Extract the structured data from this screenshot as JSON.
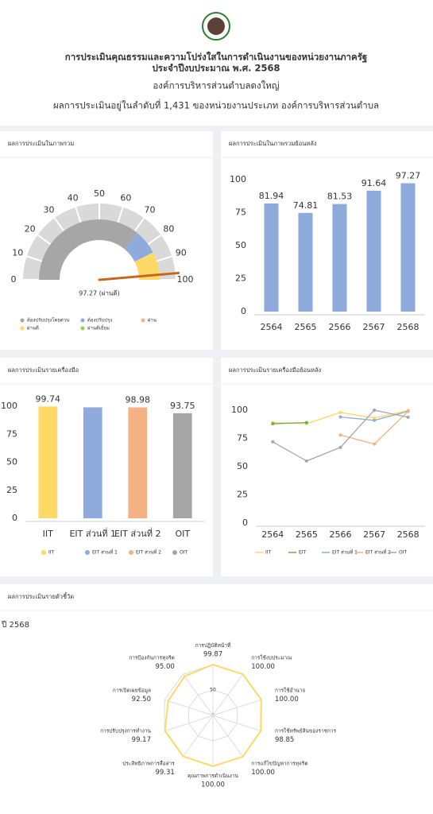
{
  "header": {
    "title": "การประเมินคุณธรรมและความโปร่งใสในการดำเนินงานของหน่วยงานภาครัฐ",
    "title_line2": "ประจำปีงบประมาณ พ.ศ. 2568",
    "organization": "องค์การบริหารส่วนตำบลดงใหญ่",
    "ranking": "ผลการประเมินอยู่ในลำดับที่ 1,431 ของหน่วยงานประเภท องค์การบริหารส่วนตำบล"
  },
  "chart_data": [
    {
      "type": "gauge",
      "title": "ผลการประเมินในภาพรวม",
      "value": 97.27,
      "value_label": "97.27 (ผ่านดี)",
      "ylim": [
        0,
        100
      ],
      "yticks": [
        0,
        10,
        20,
        30,
        40,
        50,
        60,
        70,
        80,
        90,
        100
      ],
      "bands": [
        {
          "from": 0,
          "to": 72,
          "color": "#a6a6a6"
        },
        {
          "from": 72,
          "to": 85,
          "color": "#8faadc"
        },
        {
          "from": 85,
          "to": 100,
          "color": "#ffd966"
        }
      ],
      "needle_color": "#c8661e",
      "legend": [
        {
          "name": "ต้องปรับปรุงโดยด่วน",
          "color": "#a6a6a6"
        },
        {
          "name": "ต้องปรับปรุง",
          "color": "#8faadc"
        },
        {
          "name": "ผ่าน",
          "color": "#f4b183"
        },
        {
          "name": "ผ่านดี",
          "color": "#ffd966"
        },
        {
          "name": "ผ่านดีเยี่ยม",
          "color": "#92d050"
        }
      ]
    },
    {
      "type": "bar",
      "title": "ผลการประเมินในภาพรวมย้อนหลัง",
      "categories": [
        "2564",
        "2565",
        "2566",
        "2567",
        "2568"
      ],
      "values": [
        81.94,
        74.81,
        81.53,
        91.64,
        97.27
      ],
      "color": "#8eaadb",
      "ylim": [
        0,
        100
      ],
      "yticks": [
        0,
        25,
        50,
        75,
        100
      ],
      "grid": false
    },
    {
      "type": "bar",
      "title": "ผลการประเมินรายเครื่องมือ",
      "categories": [
        "IIT",
        "EIT ส่วนที่ 1",
        "EIT ส่วนที่ 2",
        "OIT"
      ],
      "values": [
        99.74,
        99,
        98.98,
        93.75
      ],
      "value_labels": [
        "99.74",
        null,
        "98.98",
        "93.75"
      ],
      "colors": [
        "#ffd966",
        "#8faadc",
        "#f4b183",
        "#a5a5a5"
      ],
      "ylim": [
        0,
        100
      ],
      "yticks": [
        0,
        25,
        50,
        75,
        100
      ],
      "grid": false,
      "legend": true
    },
    {
      "type": "line",
      "title": "ผลการประเมินรายเครื่องมือย้อนหลัง",
      "categories": [
        "2564",
        "2565",
        "2566",
        "2567",
        "2568"
      ],
      "ylim": [
        0,
        100
      ],
      "yticks": [
        0,
        25,
        50,
        75,
        100
      ],
      "grid": false,
      "series": [
        {
          "name": "IIT",
          "color": "#ffd966",
          "values": [
            89,
            88,
            98,
            93,
            99.74
          ]
        },
        {
          "name": "EIT",
          "color": "#70ad47",
          "values": [
            88,
            89,
            null,
            null,
            null
          ]
        },
        {
          "name": "EIT ส่วนที่ 1",
          "color": "#8faadc",
          "values": [
            null,
            null,
            94,
            91,
            99
          ]
        },
        {
          "name": "EIT ส่วนที่ 2",
          "color": "#f4b183",
          "values": [
            null,
            null,
            78,
            70,
            98.98
          ]
        },
        {
          "name": "OIT",
          "color": "#a5a5a5",
          "values": [
            72,
            55,
            67,
            100,
            93.75
          ]
        }
      ]
    },
    {
      "type": "radar",
      "title": "ผลการประเมินรายตัวชี้วัด",
      "subtitle": "ปี 2568",
      "color": "#ffd966",
      "rlim": [
        0,
        100
      ],
      "rticks": [
        0,
        50
      ],
      "categories": [
        "การปฏิบัติหน้าที่",
        "การใช้งบประมาณ",
        "การใช้อำนาจ",
        "การใช้ทรัพย์สินของราชการ",
        "การแก้ไขปัญหาการทุจริต",
        "คุณภาพการดำเนินงาน",
        "ประสิทธิภาพการสื่อสาร",
        "การปรับปรุงการทำงาน",
        "การเปิดเผยข้อมูล",
        "การป้องกันการทุจริต"
      ],
      "values": [
        99.87,
        100,
        100,
        98.85,
        100,
        100,
        99.31,
        99.17,
        92.5,
        95
      ],
      "value_labels": [
        "99.87",
        "100.00",
        "100.00",
        "98.85",
        "100.00",
        "100.00",
        "99.31",
        "99.17",
        "92.50",
        "95.00"
      ]
    }
  ]
}
